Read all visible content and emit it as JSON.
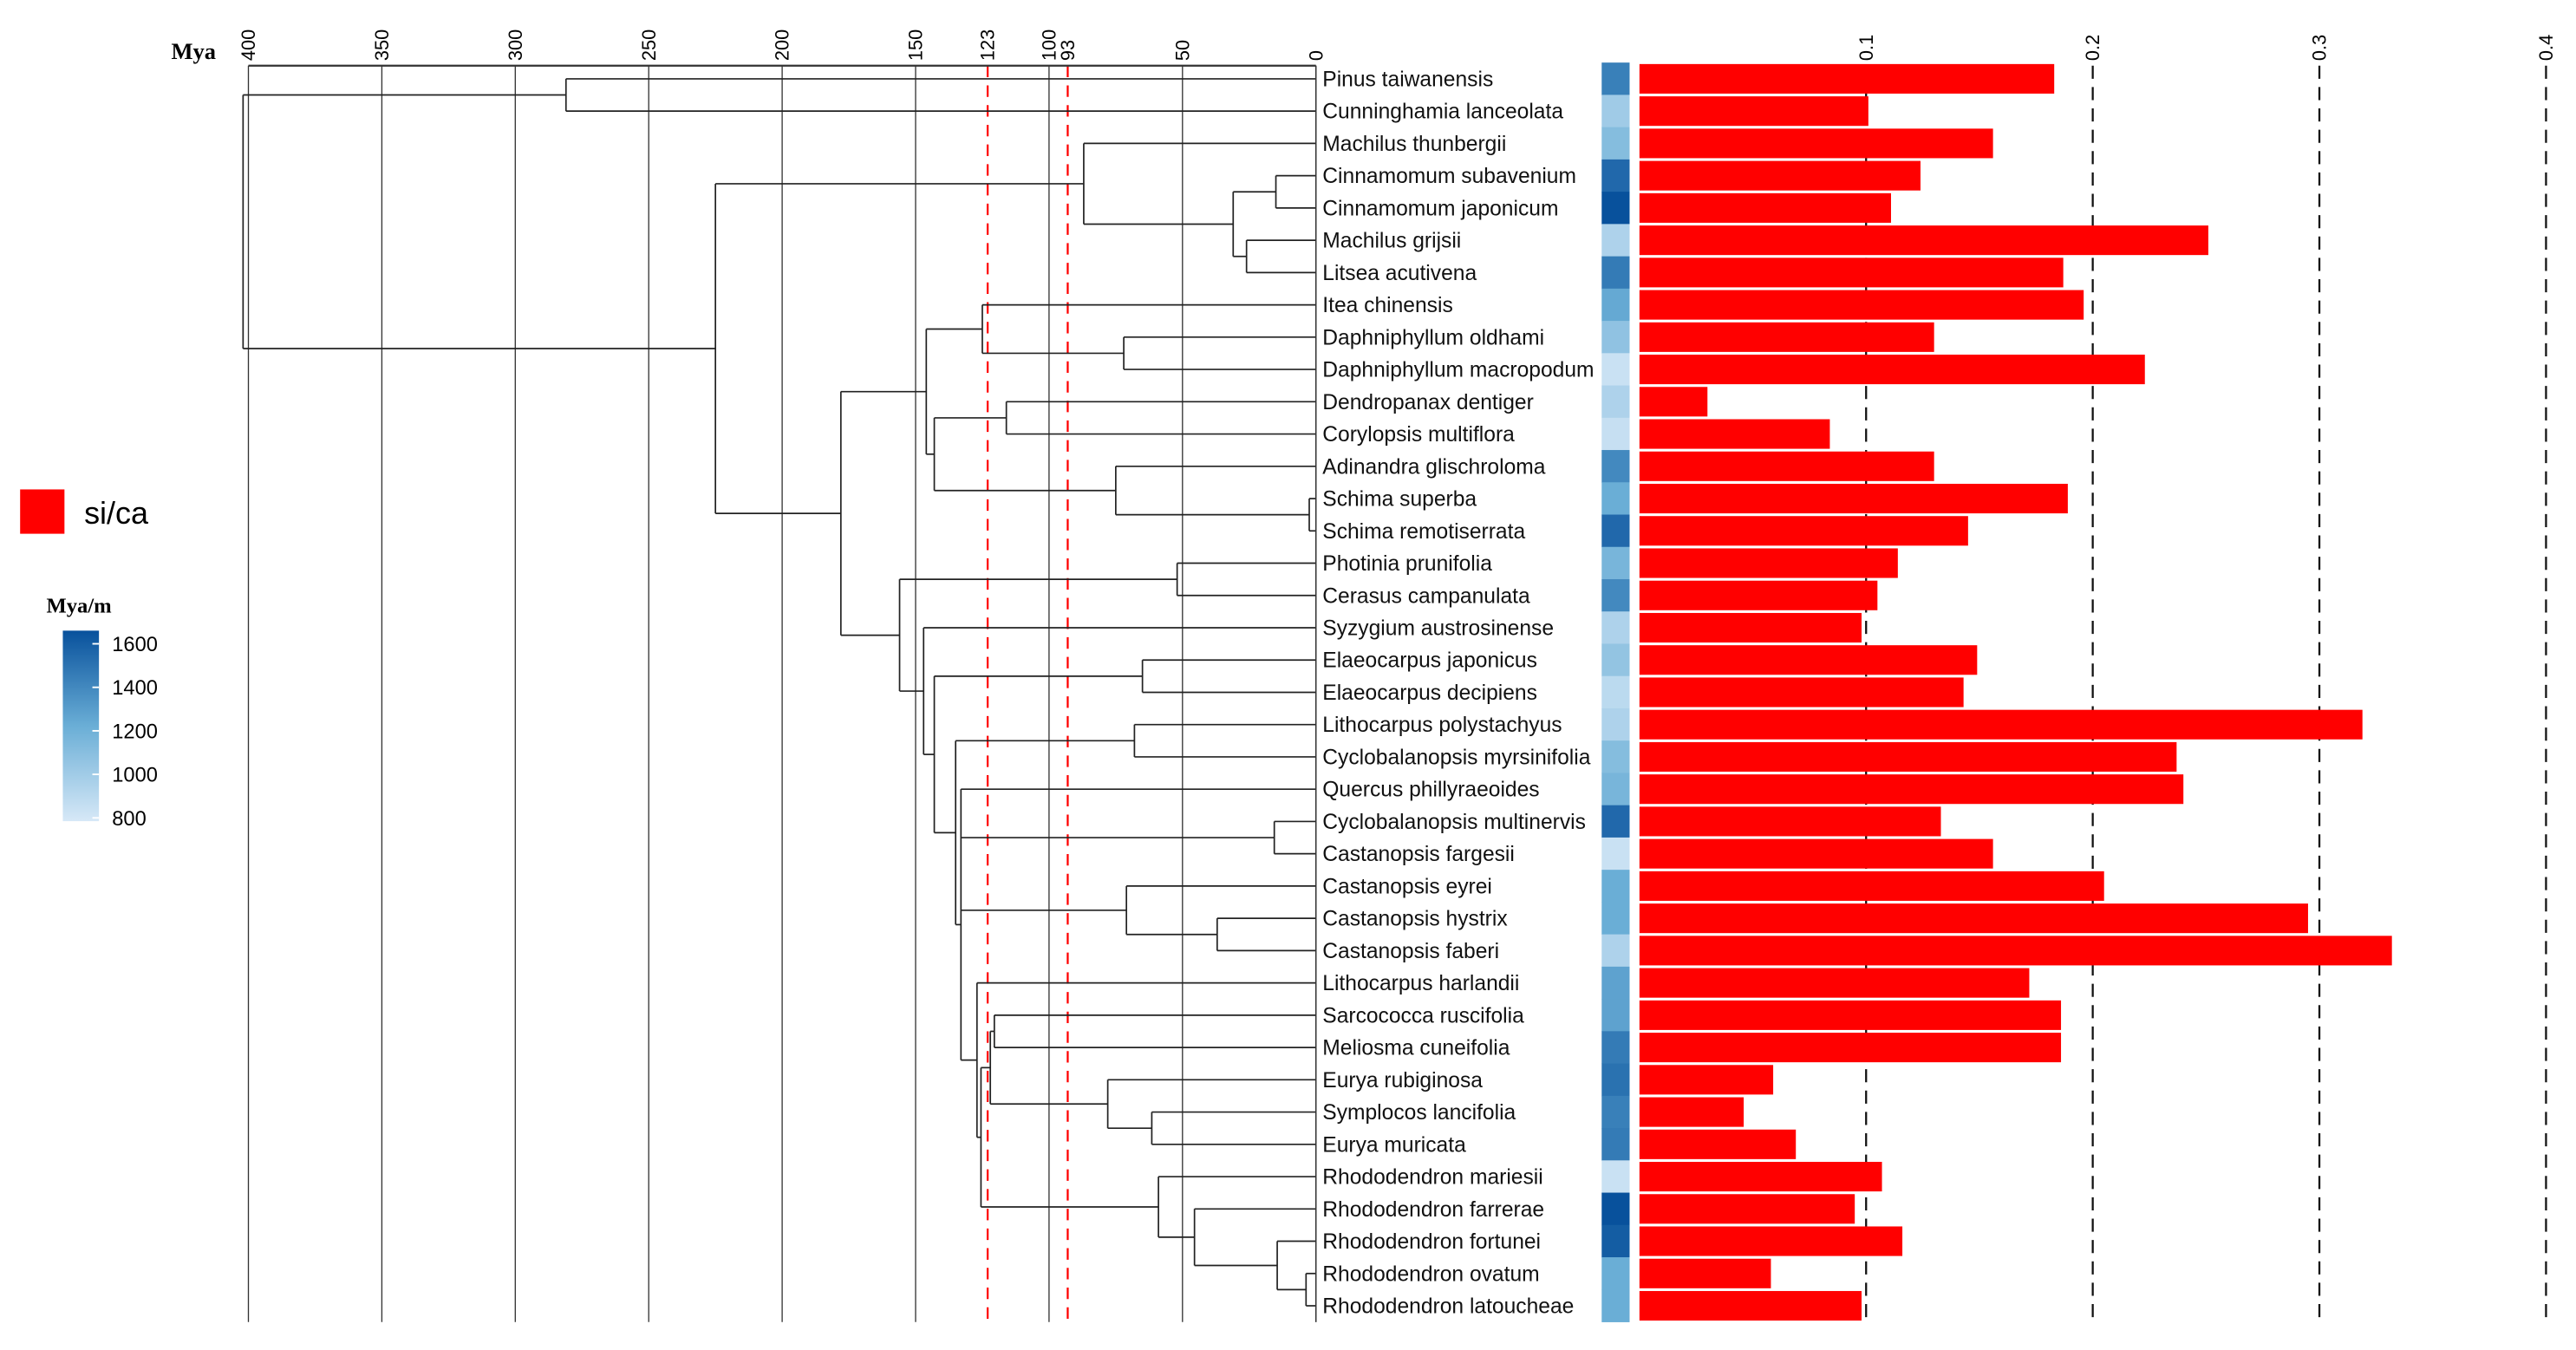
{
  "chart_data": {
    "type": "dendrogram-bar",
    "time_axis": {
      "label": "Mya",
      "range": [
        400,
        0
      ],
      "ticks": [
        400,
        350,
        300,
        250,
        200,
        150,
        123,
        100,
        93,
        50,
        0
      ],
      "grid_ticks": [
        400,
        350,
        300,
        250,
        200,
        150,
        100,
        50,
        0
      ],
      "dashed_markers": [
        123,
        93
      ],
      "marker_color": "#ff0000"
    },
    "bar_axis": {
      "ticks": [
        0.1,
        0.2,
        0.3,
        0.4
      ],
      "range": [
        0,
        0.4
      ],
      "grid": "dashed"
    },
    "legend": {
      "bar_label": "si/ca",
      "bar_color": "#ff0000",
      "gradient_title": "Mya/m",
      "gradient_ticks": [
        1600,
        1400,
        1200,
        1000,
        800
      ],
      "gradient_range": [
        800,
        1600
      ],
      "gradient_colors": [
        "#d6e8f7",
        "#6aaed6",
        "#08519c"
      ]
    },
    "species": [
      {
        "name": "Pinus taiwanensis",
        "si_ca": 0.183,
        "rate": 1400
      },
      {
        "name": "Cunninghamia lanceolata",
        "si_ca": 0.101,
        "rate": 1000
      },
      {
        "name": "Machilus thunbergii",
        "si_ca": 0.156,
        "rate": 1100
      },
      {
        "name": "Cinnamomum subavenium",
        "si_ca": 0.124,
        "rate": 1500
      },
      {
        "name": "Cinnamomum japonicum",
        "si_ca": 0.111,
        "rate": 1600
      },
      {
        "name": "Machilus grijsii",
        "si_ca": 0.251,
        "rate": 950
      },
      {
        "name": "Litsea acutivena",
        "si_ca": 0.187,
        "rate": 1420
      },
      {
        "name": "Itea chinensis",
        "si_ca": 0.196,
        "rate": 1220
      },
      {
        "name": "Daphniphyllum oldhami",
        "si_ca": 0.13,
        "rate": 1060
      },
      {
        "name": "Daphniphyllum macropodum",
        "si_ca": 0.223,
        "rate": 850
      },
      {
        "name": "Dendropanax dentiger",
        "si_ca": 0.03,
        "rate": 950
      },
      {
        "name": "Corylopsis multiflora",
        "si_ca": 0.084,
        "rate": 860
      },
      {
        "name": "Adinandra glischroloma",
        "si_ca": 0.13,
        "rate": 1360
      },
      {
        "name": "Schima superba",
        "si_ca": 0.189,
        "rate": 1200
      },
      {
        "name": "Schima remotiserrata",
        "si_ca": 0.145,
        "rate": 1500
      },
      {
        "name": "Photinia prunifolia",
        "si_ca": 0.114,
        "rate": 1150
      },
      {
        "name": "Cerasus campanulata",
        "si_ca": 0.105,
        "rate": 1360
      },
      {
        "name": "Syzygium austrosinense",
        "si_ca": 0.098,
        "rate": 950
      },
      {
        "name": "Elaeocarpus japonicus",
        "si_ca": 0.149,
        "rate": 1050
      },
      {
        "name": "Elaeocarpus decipiens",
        "si_ca": 0.143,
        "rate": 900
      },
      {
        "name": "Lithocarpus polystachyus",
        "si_ca": 0.319,
        "rate": 950
      },
      {
        "name": "Cyclobalanopsis myrsinifolia",
        "si_ca": 0.237,
        "rate": 1100
      },
      {
        "name": "Quercus phillyraeoides",
        "si_ca": 0.24,
        "rate": 1150
      },
      {
        "name": "Cyclobalanopsis multinervis",
        "si_ca": 0.133,
        "rate": 1500
      },
      {
        "name": "Castanopsis fargesii",
        "si_ca": 0.156,
        "rate": 850
      },
      {
        "name": "Castanopsis eyrei",
        "si_ca": 0.205,
        "rate": 1200
      },
      {
        "name": "Castanopsis hystrix",
        "si_ca": 0.295,
        "rate": 1200
      },
      {
        "name": "Castanopsis faberi",
        "si_ca": 0.332,
        "rate": 950
      },
      {
        "name": "Lithocarpus harlandii",
        "si_ca": 0.172,
        "rate": 1250
      },
      {
        "name": "Sarcococca ruscifolia",
        "si_ca": 0.186,
        "rate": 1250
      },
      {
        "name": "Meliosma cuneifolia",
        "si_ca": 0.186,
        "rate": 1420
      },
      {
        "name": "Eurya rubiginosa",
        "si_ca": 0.059,
        "rate": 1460
      },
      {
        "name": "Symplocos lancifolia",
        "si_ca": 0.046,
        "rate": 1400
      },
      {
        "name": "Eurya muricata",
        "si_ca": 0.069,
        "rate": 1420
      },
      {
        "name": "Rhododendron mariesii",
        "si_ca": 0.107,
        "rate": 850
      },
      {
        "name": "Rhododendron farrerae",
        "si_ca": 0.095,
        "rate": 1600
      },
      {
        "name": "Rhododendron fortunei",
        "si_ca": 0.116,
        "rate": 1550
      },
      {
        "name": "Rhododendron ovatum",
        "si_ca": 0.058,
        "rate": 1200
      },
      {
        "name": "Rhododendron latoucheae",
        "si_ca": 0.098,
        "rate": 1200
      }
    ],
    "tree": {
      "age": 402,
      "children": [
        {
          "age": 281,
          "children": [
            0,
            1
          ]
        },
        {
          "age": 225,
          "children": [
            {
              "age": 87,
              "children": [
                2,
                {
                  "age": 31,
                  "children": [
                    {
                      "age": 15,
                      "children": [
                        3,
                        4
                      ]
                    },
                    {
                      "age": 26,
                      "children": [
                        5,
                        6
                      ]
                    }
                  ]
                }
              ]
            },
            {
              "age": 178,
              "children": [
                {
                  "age": 146,
                  "children": [
                    {
                      "age": 125,
                      "children": [
                        7,
                        {
                          "age": 72,
                          "children": [
                            8,
                            9
                          ]
                        }
                      ]
                    },
                    {
                      "age": 143,
                      "children": [
                        {
                          "age": 116,
                          "children": [
                            10,
                            11
                          ]
                        },
                        {
                          "age": 75,
                          "children": [
                            12,
                            {
                              "age": 2.5,
                              "children": [
                                13,
                                14
                              ]
                            }
                          ]
                        }
                      ]
                    }
                  ]
                },
                {
                  "age": 156,
                  "children": [
                    {
                      "age": 52,
                      "children": [
                        15,
                        16
                      ]
                    },
                    {
                      "age": 147,
                      "children": [
                        17,
                        {
                          "age": 143,
                          "children": [
                            {
                              "age": 65,
                              "children": [
                                18,
                                19
                              ]
                            },
                            {
                              "age": 135,
                              "children": [
                                {
                                  "age": 68,
                                  "children": [
                                    20,
                                    21
                                  ]
                                },
                                {
                                  "age": 133,
                                  "children": [
                                    22,
                                    {
                                      "age": 15.6,
                                      "children": [
                                        23,
                                        24
                                      ]
                                    },
                                    {
                                      "age": 71,
                                      "children": [
                                        25,
                                        {
                                          "age": 37,
                                          "children": [
                                            26,
                                            27
                                          ]
                                        }
                                      ]
                                    },
                                    {
                                      "age": 127,
                                      "children": [
                                        28,
                                        {
                                          "age": 125.5,
                                          "children": [
                                            {
                                              "age": 122,
                                              "children": [
                                                {
                                                  "age": 120.5,
                                                  "children": [
                                                    29,
                                                    30
                                                  ]
                                                },
                                                {
                                                  "age": 78,
                                                  "children": [
                                                    31,
                                                    {
                                                      "age": 61.5,
                                                      "children": [
                                                        32,
                                                        33
                                                      ]
                                                    }
                                                  ]
                                                }
                                              ]
                                            },
                                            {
                                              "age": 59,
                                              "children": [
                                                34,
                                                {
                                                  "age": 45.5,
                                                  "children": [
                                                    35,
                                                    {
                                                      "age": 14.5,
                                                      "children": [
                                                        36,
                                                        {
                                                          "age": 3.7,
                                                          "children": [
                                                            37,
                                                            38
                                                          ]
                                                        }
                                                      ]
                                                    }
                                                  ]
                                                }
                                              ]
                                            }
                                          ]
                                        }
                                      ]
                                    }
                                  ]
                                }
                              ]
                            }
                          ]
                        }
                      ]
                    }
                  ]
                }
              ]
            }
          ]
        }
      ]
    }
  }
}
